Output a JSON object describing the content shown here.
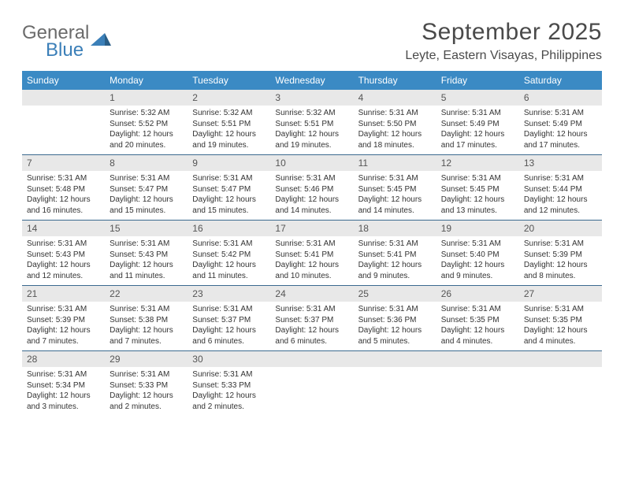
{
  "brand": {
    "name_top": "General",
    "name_bottom": "Blue"
  },
  "title": "September 2025",
  "location": "Leyte, Eastern Visayas, Philippines",
  "colors": {
    "header_bg": "#3b8ac4",
    "header_text": "#ffffff",
    "daynum_bg": "#e8e8e8",
    "daynum_text": "#555555",
    "border": "#3b6a8f",
    "logo_gray": "#6b6b6b",
    "logo_blue": "#3b7fb8"
  },
  "day_labels": [
    "Sunday",
    "Monday",
    "Tuesday",
    "Wednesday",
    "Thursday",
    "Friday",
    "Saturday"
  ],
  "weeks": [
    [
      {
        "n": "",
        "sunrise": "",
        "sunset": "",
        "daylight": ""
      },
      {
        "n": "1",
        "sunrise": "Sunrise: 5:32 AM",
        "sunset": "Sunset: 5:52 PM",
        "daylight": "Daylight: 12 hours and 20 minutes."
      },
      {
        "n": "2",
        "sunrise": "Sunrise: 5:32 AM",
        "sunset": "Sunset: 5:51 PM",
        "daylight": "Daylight: 12 hours and 19 minutes."
      },
      {
        "n": "3",
        "sunrise": "Sunrise: 5:32 AM",
        "sunset": "Sunset: 5:51 PM",
        "daylight": "Daylight: 12 hours and 19 minutes."
      },
      {
        "n": "4",
        "sunrise": "Sunrise: 5:31 AM",
        "sunset": "Sunset: 5:50 PM",
        "daylight": "Daylight: 12 hours and 18 minutes."
      },
      {
        "n": "5",
        "sunrise": "Sunrise: 5:31 AM",
        "sunset": "Sunset: 5:49 PM",
        "daylight": "Daylight: 12 hours and 17 minutes."
      },
      {
        "n": "6",
        "sunrise": "Sunrise: 5:31 AM",
        "sunset": "Sunset: 5:49 PM",
        "daylight": "Daylight: 12 hours and 17 minutes."
      }
    ],
    [
      {
        "n": "7",
        "sunrise": "Sunrise: 5:31 AM",
        "sunset": "Sunset: 5:48 PM",
        "daylight": "Daylight: 12 hours and 16 minutes."
      },
      {
        "n": "8",
        "sunrise": "Sunrise: 5:31 AM",
        "sunset": "Sunset: 5:47 PM",
        "daylight": "Daylight: 12 hours and 15 minutes."
      },
      {
        "n": "9",
        "sunrise": "Sunrise: 5:31 AM",
        "sunset": "Sunset: 5:47 PM",
        "daylight": "Daylight: 12 hours and 15 minutes."
      },
      {
        "n": "10",
        "sunrise": "Sunrise: 5:31 AM",
        "sunset": "Sunset: 5:46 PM",
        "daylight": "Daylight: 12 hours and 14 minutes."
      },
      {
        "n": "11",
        "sunrise": "Sunrise: 5:31 AM",
        "sunset": "Sunset: 5:45 PM",
        "daylight": "Daylight: 12 hours and 14 minutes."
      },
      {
        "n": "12",
        "sunrise": "Sunrise: 5:31 AM",
        "sunset": "Sunset: 5:45 PM",
        "daylight": "Daylight: 12 hours and 13 minutes."
      },
      {
        "n": "13",
        "sunrise": "Sunrise: 5:31 AM",
        "sunset": "Sunset: 5:44 PM",
        "daylight": "Daylight: 12 hours and 12 minutes."
      }
    ],
    [
      {
        "n": "14",
        "sunrise": "Sunrise: 5:31 AM",
        "sunset": "Sunset: 5:43 PM",
        "daylight": "Daylight: 12 hours and 12 minutes."
      },
      {
        "n": "15",
        "sunrise": "Sunrise: 5:31 AM",
        "sunset": "Sunset: 5:43 PM",
        "daylight": "Daylight: 12 hours and 11 minutes."
      },
      {
        "n": "16",
        "sunrise": "Sunrise: 5:31 AM",
        "sunset": "Sunset: 5:42 PM",
        "daylight": "Daylight: 12 hours and 11 minutes."
      },
      {
        "n": "17",
        "sunrise": "Sunrise: 5:31 AM",
        "sunset": "Sunset: 5:41 PM",
        "daylight": "Daylight: 12 hours and 10 minutes."
      },
      {
        "n": "18",
        "sunrise": "Sunrise: 5:31 AM",
        "sunset": "Sunset: 5:41 PM",
        "daylight": "Daylight: 12 hours and 9 minutes."
      },
      {
        "n": "19",
        "sunrise": "Sunrise: 5:31 AM",
        "sunset": "Sunset: 5:40 PM",
        "daylight": "Daylight: 12 hours and 9 minutes."
      },
      {
        "n": "20",
        "sunrise": "Sunrise: 5:31 AM",
        "sunset": "Sunset: 5:39 PM",
        "daylight": "Daylight: 12 hours and 8 minutes."
      }
    ],
    [
      {
        "n": "21",
        "sunrise": "Sunrise: 5:31 AM",
        "sunset": "Sunset: 5:39 PM",
        "daylight": "Daylight: 12 hours and 7 minutes."
      },
      {
        "n": "22",
        "sunrise": "Sunrise: 5:31 AM",
        "sunset": "Sunset: 5:38 PM",
        "daylight": "Daylight: 12 hours and 7 minutes."
      },
      {
        "n": "23",
        "sunrise": "Sunrise: 5:31 AM",
        "sunset": "Sunset: 5:37 PM",
        "daylight": "Daylight: 12 hours and 6 minutes."
      },
      {
        "n": "24",
        "sunrise": "Sunrise: 5:31 AM",
        "sunset": "Sunset: 5:37 PM",
        "daylight": "Daylight: 12 hours and 6 minutes."
      },
      {
        "n": "25",
        "sunrise": "Sunrise: 5:31 AM",
        "sunset": "Sunset: 5:36 PM",
        "daylight": "Daylight: 12 hours and 5 minutes."
      },
      {
        "n": "26",
        "sunrise": "Sunrise: 5:31 AM",
        "sunset": "Sunset: 5:35 PM",
        "daylight": "Daylight: 12 hours and 4 minutes."
      },
      {
        "n": "27",
        "sunrise": "Sunrise: 5:31 AM",
        "sunset": "Sunset: 5:35 PM",
        "daylight": "Daylight: 12 hours and 4 minutes."
      }
    ],
    [
      {
        "n": "28",
        "sunrise": "Sunrise: 5:31 AM",
        "sunset": "Sunset: 5:34 PM",
        "daylight": "Daylight: 12 hours and 3 minutes."
      },
      {
        "n": "29",
        "sunrise": "Sunrise: 5:31 AM",
        "sunset": "Sunset: 5:33 PM",
        "daylight": "Daylight: 12 hours and 2 minutes."
      },
      {
        "n": "30",
        "sunrise": "Sunrise: 5:31 AM",
        "sunset": "Sunset: 5:33 PM",
        "daylight": "Daylight: 12 hours and 2 minutes."
      },
      {
        "n": "",
        "sunrise": "",
        "sunset": "",
        "daylight": ""
      },
      {
        "n": "",
        "sunrise": "",
        "sunset": "",
        "daylight": ""
      },
      {
        "n": "",
        "sunrise": "",
        "sunset": "",
        "daylight": ""
      },
      {
        "n": "",
        "sunrise": "",
        "sunset": "",
        "daylight": ""
      }
    ]
  ]
}
